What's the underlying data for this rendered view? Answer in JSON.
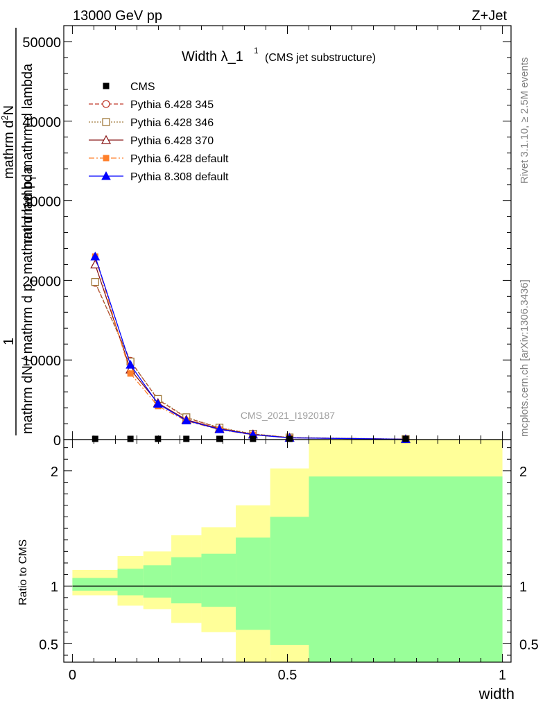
{
  "header": {
    "left": "13000 GeV pp",
    "right": "Z+Jet"
  },
  "side_labels": {
    "rivet": "Rivet 3.1.10, ≥ 2.5M events",
    "mcplots": "mcplots.cern.ch [arXiv:1306.3436]"
  },
  "watermark": "CMS_2021_I1920187",
  "chart_data": {
    "type": "line",
    "title": "Width λ_1",
    "title_superscript": "1",
    "subtitle": "(CMS jet substructure)",
    "xlabel": "width",
    "ylabel_main": {
      "numerator": "1",
      "denominator": "mathrm dN / mathrm d p",
      "denominator_subscript": "T",
      "denominator_tail": " mathrm d lambda",
      "right_top": "mathrm d",
      "right_top_sup": "2",
      "right_top_tail": "N",
      "right_bottom": "mathrm d p",
      "right_bottom_sub": "T",
      "right_bottom_tail": " mathrm d lambda"
    },
    "ylabel_ratio": "Ratio to CMS",
    "xlim": [
      -0.02,
      1.02
    ],
    "ylim_main": [
      0,
      52000
    ],
    "ylim_ratio": [
      0.34,
      2.27
    ],
    "x_ticks": [
      {
        "v": 0,
        "label": "0"
      },
      {
        "v": 0.5,
        "label": "0.5"
      },
      {
        "v": 1,
        "label": "1"
      }
    ],
    "y_ticks_main": [
      {
        "v": 0,
        "label": "0"
      },
      {
        "v": 10000,
        "label": "10000"
      },
      {
        "v": 20000,
        "label": "20000"
      },
      {
        "v": 30000,
        "label": "30000"
      },
      {
        "v": 40000,
        "label": "40000"
      },
      {
        "v": 50000,
        "label": "50000"
      }
    ],
    "y_ticks_ratio": [
      {
        "v": 0.5,
        "label": "0.5"
      },
      {
        "v": 1,
        "label": "1"
      },
      {
        "v": 2,
        "label": "2"
      }
    ],
    "x": [
      0.053,
      0.135,
      0.199,
      0.265,
      0.342,
      0.42,
      0.505,
      0.775
    ],
    "data": {
      "name": "CMS",
      "values": [
        5,
        5,
        5,
        5,
        5,
        5,
        5,
        5
      ]
    },
    "series": [
      {
        "name": "Pythia 6.428 345",
        "values": [
          19700,
          9900,
          5000,
          2750,
          1450,
          700,
          250,
          50
        ],
        "color": "#c0392b",
        "marker": "circle-open",
        "dash": "6,3"
      },
      {
        "name": "Pythia 6.428 346",
        "values": [
          19800,
          9800,
          5100,
          2800,
          1500,
          730,
          260,
          55
        ],
        "color": "#a07a3c",
        "marker": "square-open",
        "dash": "2,2"
      },
      {
        "name": "Pythia 6.428 370",
        "values": [
          22000,
          8800,
          4600,
          2500,
          1350,
          650,
          230,
          45
        ],
        "color": "#8b1a1a",
        "marker": "triangle-open",
        "dash": ""
      },
      {
        "name": "Pythia 6.428 default",
        "values": [
          23000,
          8300,
          4200,
          2350,
          1250,
          600,
          210,
          40
        ],
        "color": "#ff7f2a",
        "marker": "square-filled",
        "dash": "8,3,2,3"
      },
      {
        "name": "Pythia 8.308 default",
        "values": [
          23000,
          9400,
          4500,
          2400,
          1300,
          620,
          220,
          45
        ],
        "color": "#0000ff",
        "marker": "triangle-filled",
        "dash": ""
      }
    ],
    "ratio_bands": [
      {
        "x0": 0.0,
        "x1": 0.105,
        "yellow": [
          0.92,
          1.14
        ],
        "green": [
          0.96,
          1.07
        ]
      },
      {
        "x0": 0.105,
        "x1": 0.165,
        "yellow": [
          0.83,
          1.26
        ],
        "green": [
          0.92,
          1.15
        ]
      },
      {
        "x0": 0.165,
        "x1": 0.23,
        "yellow": [
          0.8,
          1.3
        ],
        "green": [
          0.9,
          1.18
        ]
      },
      {
        "x0": 0.23,
        "x1": 0.3,
        "yellow": [
          0.68,
          1.44
        ],
        "green": [
          0.85,
          1.25
        ]
      },
      {
        "x0": 0.3,
        "x1": 0.38,
        "yellow": [
          0.6,
          1.51
        ],
        "green": [
          0.82,
          1.28
        ]
      },
      {
        "x0": 0.38,
        "x1": 0.46,
        "yellow": [
          0.34,
          1.7
        ],
        "green": [
          0.62,
          1.42
        ]
      },
      {
        "x0": 0.46,
        "x1": 0.55,
        "yellow": [
          0.34,
          2.02
        ],
        "green": [
          0.49,
          1.6
        ]
      },
      {
        "x0": 0.55,
        "x1": 1.0,
        "yellow": [
          0.34,
          2.27
        ],
        "green": [
          0.34,
          1.95
        ]
      }
    ],
    "legend": "top-left",
    "grid": false
  }
}
